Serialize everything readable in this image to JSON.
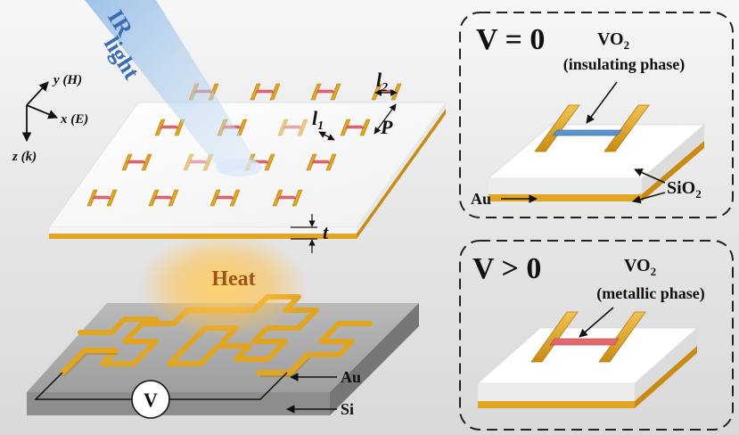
{
  "beam_label": {
    "line1": "IR",
    "line2": "light"
  },
  "axes": {
    "y": "y (H)",
    "x": "x (E)",
    "z": "z (k)"
  },
  "metasurface_dims": {
    "l1": "l",
    "l1_sub": "1",
    "l2": "l",
    "l2_sub": "2",
    "period": "P",
    "thickness": "t"
  },
  "heater": {
    "heat": "Heat",
    "voltage_source": "V",
    "au": "Au",
    "si": "Si"
  },
  "panel_off": {
    "title": "V = 0",
    "vo2_prefix": "VO",
    "vo2_sub": "2",
    "phase": "(insulating phase)",
    "au": "Au",
    "sio2_prefix": "SiO",
    "sio2_sub": "2"
  },
  "panel_on": {
    "title": "V > 0",
    "vo2_prefix": "VO",
    "vo2_sub": "2",
    "phase": "(metallic phase)"
  },
  "colors": {
    "gold": "#e2a521",
    "vo2_insulating": "#5b93cf",
    "vo2_metallic": "#e0686e",
    "heat_text": "#a0521a",
    "ir_text": "#3a6db3"
  }
}
